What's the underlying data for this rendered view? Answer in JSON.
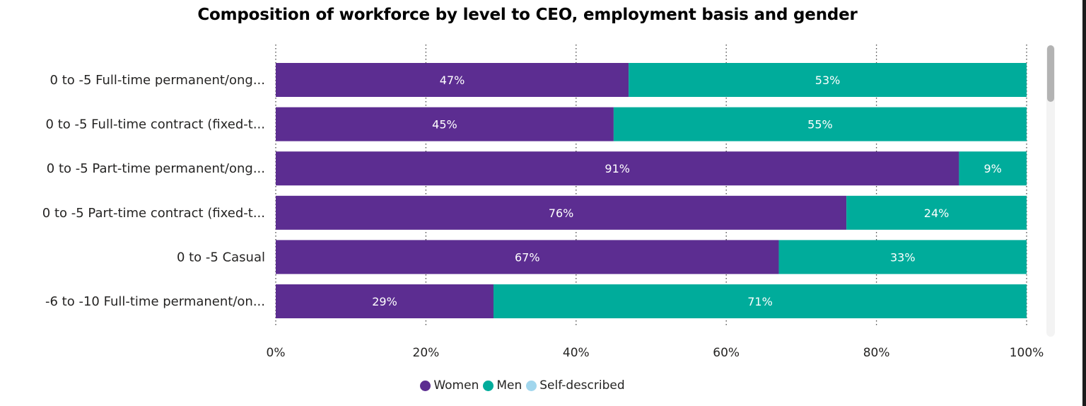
{
  "chart_data": {
    "type": "bar",
    "orientation": "horizontal",
    "stacked": "100%",
    "title": "Composition of workforce by level to CEO, employment basis and gender",
    "categories": [
      "0 to -5 Full-time permanent/ong...",
      "0 to -5 Full-time contract (fixed-t...",
      "0 to -5 Part-time permanent/ong...",
      "0 to -5 Part-time contract (fixed-t...",
      "0 to -5 Casual",
      "-6 to -10 Full-time permanent/on..."
    ],
    "series": [
      {
        "name": "Women",
        "color": "#5c2d91",
        "values": [
          47,
          45,
          91,
          76,
          67,
          29
        ]
      },
      {
        "name": "Men",
        "color": "#00ac9b",
        "values": [
          53,
          55,
          9,
          24,
          33,
          71
        ]
      },
      {
        "name": "Self-described",
        "color": "#a1d6ed",
        "values": [
          0,
          0,
          0,
          0,
          0,
          0
        ]
      }
    ],
    "data_labels": {
      "Women": [
        "47%",
        "45%",
        "91%",
        "76%",
        "67%",
        "29%"
      ],
      "Men": [
        "53%",
        "55%",
        "9%",
        "24%",
        "33%",
        "71%"
      ]
    },
    "xlim": [
      0,
      100
    ],
    "x_ticks": [
      "0%",
      "20%",
      "40%",
      "60%",
      "80%",
      "100%"
    ],
    "grid": "vertical-dotted",
    "legend_position": "bottom-center"
  }
}
